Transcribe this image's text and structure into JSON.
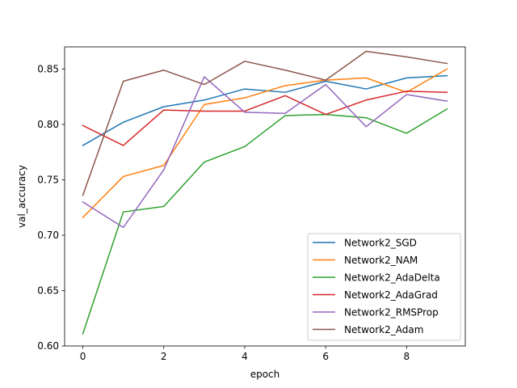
{
  "chart_data": {
    "type": "line",
    "xlabel": "epoch",
    "ylabel": "val_accuracy",
    "xlim": [
      -0.45,
      9.45
    ],
    "ylim": [
      0.6,
      0.87
    ],
    "xticks": [
      0,
      2,
      4,
      6,
      8
    ],
    "xtick_labels": [
      "0",
      "2",
      "4",
      "6",
      "8"
    ],
    "yticks": [
      0.6,
      0.65,
      0.7,
      0.75,
      0.8,
      0.85
    ],
    "ytick_labels": [
      "0.60",
      "0.65",
      "0.70",
      "0.75",
      "0.80",
      "0.85"
    ],
    "grid": false,
    "legend_position": "lower-right",
    "x": [
      0,
      1,
      2,
      3,
      4,
      5,
      6,
      7,
      8,
      9
    ],
    "series": [
      {
        "name": "Network2_SGD",
        "color": "#1f77b4",
        "values": [
          0.781,
          0.802,
          0.816,
          0.822,
          0.832,
          0.829,
          0.839,
          0.832,
          0.842,
          0.844
        ]
      },
      {
        "name": "Network2_NAM",
        "color": "#ff7f0e",
        "values": [
          0.716,
          0.753,
          0.763,
          0.818,
          0.824,
          0.835,
          0.84,
          0.842,
          0.829,
          0.85
        ]
      },
      {
        "name": "Network2_AdaDelta",
        "color": "#2ca02c",
        "values": [
          0.611,
          0.721,
          0.726,
          0.766,
          0.78,
          0.808,
          0.809,
          0.806,
          0.792,
          0.814
        ]
      },
      {
        "name": "Network2_AdaGrad",
        "color": "#d62728",
        "values": [
          0.799,
          0.781,
          0.813,
          0.812,
          0.812,
          0.826,
          0.809,
          0.822,
          0.83,
          0.829
        ]
      },
      {
        "name": "Network2_RMSProp",
        "color": "#9467bd",
        "values": [
          0.73,
          0.707,
          0.759,
          0.843,
          0.811,
          0.81,
          0.836,
          0.798,
          0.827,
          0.821
        ]
      },
      {
        "name": "Network2_Adam",
        "color": "#8c564b",
        "values": [
          0.736,
          0.839,
          0.849,
          0.836,
          0.857,
          0.849,
          0.84,
          0.866,
          0.861,
          0.855
        ]
      }
    ]
  }
}
